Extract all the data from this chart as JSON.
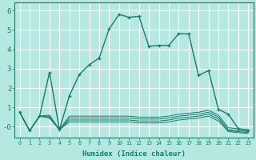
{
  "xlabel": "Humidex (Indice chaleur)",
  "background_color": "#b5e8e0",
  "grid_color": "#ffffff",
  "line_color": "#1a7a6e",
  "xlim": [
    -0.5,
    23.5
  ],
  "ylim": [
    -0.55,
    6.4
  ],
  "yticks": [
    0,
    1,
    2,
    3,
    4,
    5,
    6
  ],
  "ytick_labels": [
    "-0",
    "1",
    "2",
    "3",
    "4",
    "5",
    "6"
  ],
  "xtick_labels": [
    "0",
    "1",
    "2",
    "3",
    "4",
    "5",
    "6",
    "7",
    "8",
    "9",
    "10",
    "11",
    "12",
    "13",
    "14",
    "15",
    "16",
    "17",
    "18",
    "19",
    "20",
    "21",
    "22",
    "23"
  ],
  "main_series_x": [
    0,
    1,
    2,
    3,
    4,
    5,
    6,
    7,
    8,
    9,
    10,
    11,
    12,
    13,
    14,
    15,
    16,
    17,
    18,
    19,
    20,
    21,
    22,
    23
  ],
  "main_series_y": [
    0.75,
    -0.2,
    0.55,
    2.8,
    -0.15,
    1.6,
    2.7,
    3.2,
    3.55,
    5.05,
    5.8,
    5.65,
    5.7,
    4.15,
    4.2,
    4.2,
    4.8,
    4.8,
    2.65,
    2.9,
    0.9,
    0.65,
    -0.1,
    -0.2
  ],
  "band_series": [
    [
      0.75,
      -0.2,
      0.55,
      0.6,
      -0.15,
      0.55,
      0.55,
      0.55,
      0.55,
      0.55,
      0.55,
      0.55,
      0.5,
      0.5,
      0.5,
      0.55,
      0.65,
      0.7,
      0.75,
      0.85,
      0.6,
      -0.05,
      -0.1,
      -0.15
    ],
    [
      0.75,
      -0.2,
      0.55,
      0.55,
      -0.15,
      0.45,
      0.45,
      0.45,
      0.45,
      0.45,
      0.45,
      0.45,
      0.4,
      0.4,
      0.4,
      0.45,
      0.55,
      0.6,
      0.65,
      0.75,
      0.5,
      -0.15,
      -0.2,
      -0.25
    ],
    [
      0.75,
      -0.2,
      0.55,
      0.5,
      -0.15,
      0.35,
      0.35,
      0.35,
      0.35,
      0.35,
      0.35,
      0.35,
      0.3,
      0.3,
      0.3,
      0.35,
      0.45,
      0.5,
      0.55,
      0.65,
      0.4,
      -0.2,
      -0.25,
      -0.3
    ],
    [
      0.75,
      -0.2,
      0.55,
      0.45,
      -0.15,
      0.25,
      0.25,
      0.25,
      0.25,
      0.25,
      0.25,
      0.25,
      0.2,
      0.2,
      0.2,
      0.25,
      0.35,
      0.4,
      0.45,
      0.55,
      0.3,
      -0.25,
      -0.3,
      -0.35
    ]
  ]
}
